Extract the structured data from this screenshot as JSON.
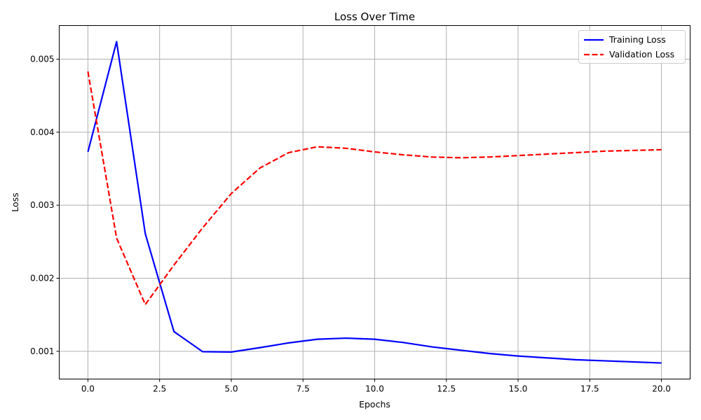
{
  "chart_data": {
    "type": "line",
    "title": "Loss Over Time",
    "xlabel": "Epochs",
    "ylabel": "Loss",
    "xlim": [
      -1,
      21
    ],
    "ylim": [
      0.00062,
      0.00546
    ],
    "xticks": [
      0,
      2.5,
      5,
      7.5,
      10,
      12.5,
      15,
      17.5,
      20
    ],
    "xtick_labels": [
      "0.0",
      "2.5",
      "5.0",
      "7.5",
      "10.0",
      "12.5",
      "15.0",
      "17.5",
      "20.0"
    ],
    "yticks": [
      0.001,
      0.002,
      0.003,
      0.004,
      0.005
    ],
    "ytick_labels": [
      "0.001",
      "0.002",
      "0.003",
      "0.004",
      "0.005"
    ],
    "grid": true,
    "legend_position": "top-right",
    "x": [
      0,
      1,
      2,
      3,
      4,
      5,
      6,
      7,
      8,
      9,
      10,
      11,
      12,
      13,
      14,
      15,
      16,
      17,
      18,
      19,
      20
    ],
    "series": [
      {
        "name": "Training Loss",
        "color": "#0000ff",
        "style": "solid",
        "values": [
          0.00373,
          0.00524,
          0.00261,
          0.00127,
          0.000995,
          0.00099,
          0.00105,
          0.001115,
          0.001165,
          0.00118,
          0.001165,
          0.00112,
          0.00106,
          0.001015,
          0.00097,
          0.000935,
          0.00091,
          0.000885,
          0.00087,
          0.000855,
          0.00084
        ]
      },
      {
        "name": "Validation Loss",
        "color": "#ff0000",
        "style": "dashed",
        "values": [
          0.00483,
          0.00255,
          0.00164,
          0.00218,
          0.00269,
          0.00316,
          0.00351,
          0.00372,
          0.0038,
          0.00378,
          0.00373,
          0.00369,
          0.00366,
          0.00365,
          0.00366,
          0.00368,
          0.0037,
          0.00372,
          0.00374,
          0.00375,
          0.00376
        ]
      }
    ]
  }
}
